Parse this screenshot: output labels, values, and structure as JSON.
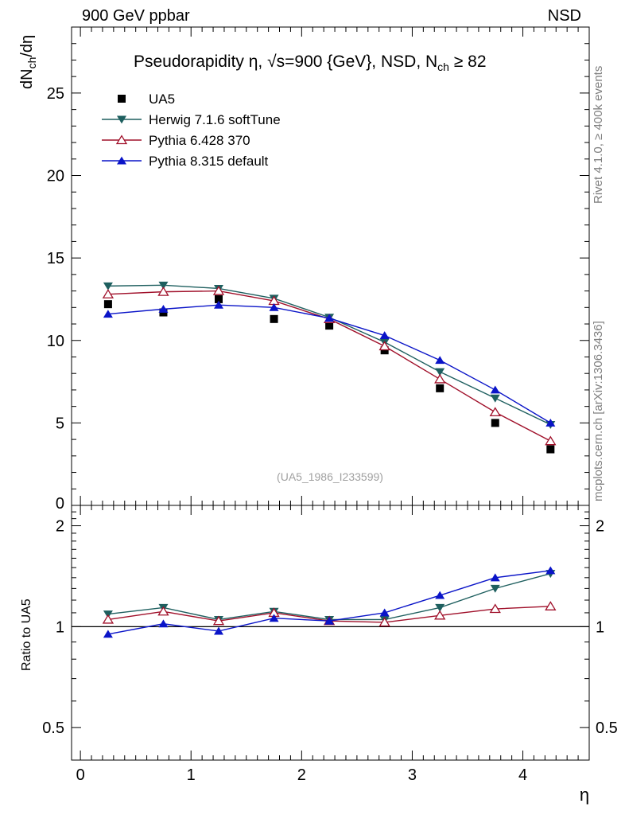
{
  "header": {
    "left": "900 GeV ppbar",
    "right": "NSD"
  },
  "side_labels": {
    "rivet": "Rivet 4.1.0, ≥ 400k events",
    "mcplots": "mcplots.cern.ch [arXiv:1306.3436]"
  },
  "colors": {
    "UA5": "#000000",
    "Herwig": "#1e5f5f",
    "Pythia6": "#a0102a",
    "Pythia8": "#0a14c8",
    "watermark": "#a0a0a0"
  },
  "chart_data": [
    {
      "type": "line",
      "title": "Pseudorapidity η, √s=900 {GeV}, NSD, N",
      "title_sub": "ch",
      "title_tail": " ≥ 82",
      "ylabel": "dN",
      "ylabel_sub": "ch",
      "ylabel_tail": "/dη",
      "watermark": "(UA5_1986_I233599)",
      "xlim": [
        -0.08,
        4.6
      ],
      "ylim": [
        0,
        29
      ],
      "ytick_values": [
        0,
        5,
        10,
        15,
        20,
        25
      ],
      "ytick_labels": [
        "0",
        "5",
        "10",
        "15",
        "20",
        "25"
      ],
      "x": [
        0.25,
        0.75,
        1.25,
        1.75,
        2.25,
        2.75,
        3.25,
        3.75,
        4.25
      ],
      "series": [
        {
          "name": "UA5",
          "marker": "square",
          "values": [
            12.2,
            11.7,
            12.5,
            11.3,
            10.9,
            9.4,
            7.1,
            5.0,
            3.4
          ]
        },
        {
          "name": "Herwig 7.1.6 softTune",
          "marker": "triangle-down",
          "values": [
            13.3,
            13.35,
            13.15,
            12.55,
            11.4,
            9.9,
            8.1,
            6.5,
            4.9
          ]
        },
        {
          "name": "Pythia 6.428 370",
          "marker": "triangle-up-open",
          "values": [
            12.8,
            12.95,
            13.0,
            12.4,
            11.3,
            9.65,
            7.65,
            5.65,
            3.9
          ]
        },
        {
          "name": "Pythia 8.315 default",
          "marker": "triangle-up",
          "values": [
            11.6,
            11.9,
            12.15,
            12.0,
            11.35,
            10.3,
            8.8,
            7.0,
            5.0
          ]
        }
      ]
    },
    {
      "type": "line",
      "xlabel": "η",
      "ylabel": "Ratio to UA5",
      "xlim": [
        -0.08,
        4.6
      ],
      "ylim": [
        0.4,
        2.3
      ],
      "xtick_values": [
        0,
        1,
        2,
        3,
        4
      ],
      "xtick_labels": [
        "0",
        "1",
        "2",
        "3",
        "4"
      ],
      "ytick_values": [
        0.5,
        1,
        2
      ],
      "ytick_labels": [
        "0.5",
        "1",
        "2"
      ],
      "x": [
        0.25,
        0.75,
        1.25,
        1.75,
        2.25,
        2.75,
        3.25,
        3.75,
        4.25
      ],
      "series": [
        {
          "name": "Herwig 7.1.6 softTune",
          "marker": "triangle-down",
          "values": [
            1.09,
            1.14,
            1.05,
            1.11,
            1.05,
            1.05,
            1.14,
            1.3,
            1.44
          ]
        },
        {
          "name": "Pythia 6.428 370",
          "marker": "triangle-up-open",
          "values": [
            1.05,
            1.11,
            1.04,
            1.1,
            1.04,
            1.03,
            1.08,
            1.13,
            1.15
          ]
        },
        {
          "name": "Pythia 8.315 default",
          "marker": "triangle-up",
          "values": [
            0.95,
            1.02,
            0.97,
            1.06,
            1.04,
            1.1,
            1.24,
            1.4,
            1.47
          ]
        }
      ]
    }
  ]
}
